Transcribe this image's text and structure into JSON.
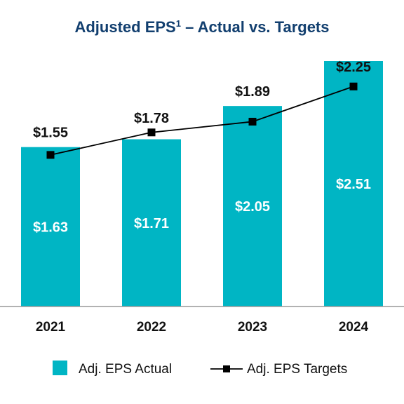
{
  "chart_data": {
    "type": "bar",
    "title": "Adjusted EPS",
    "title_superscript": "1",
    "title_rest": " – Actual vs. Targets",
    "categories": [
      "2021",
      "2022",
      "2023",
      "2024"
    ],
    "series": [
      {
        "name": "Adj. EPS Actual",
        "type": "bar",
        "values": [
          1.63,
          1.71,
          2.05,
          2.51
        ],
        "labels": [
          "$1.63",
          "$1.71",
          "$2.05",
          "$2.51"
        ],
        "color": "#00b5c4"
      },
      {
        "name": "Adj. EPS Targets",
        "type": "line",
        "values": [
          1.55,
          1.78,
          1.89,
          2.25
        ],
        "labels": [
          "$1.55",
          "$1.78",
          "$1.89",
          "$2.25"
        ],
        "color": "#000000"
      }
    ],
    "xlabel": "",
    "ylabel": "",
    "ylim": [
      0,
      2.51
    ],
    "grid": false,
    "legend": "bottom"
  },
  "colors": {
    "title": "#123f6f",
    "bar": "#00b5c4",
    "line": "#000000",
    "axis": "#999999"
  }
}
